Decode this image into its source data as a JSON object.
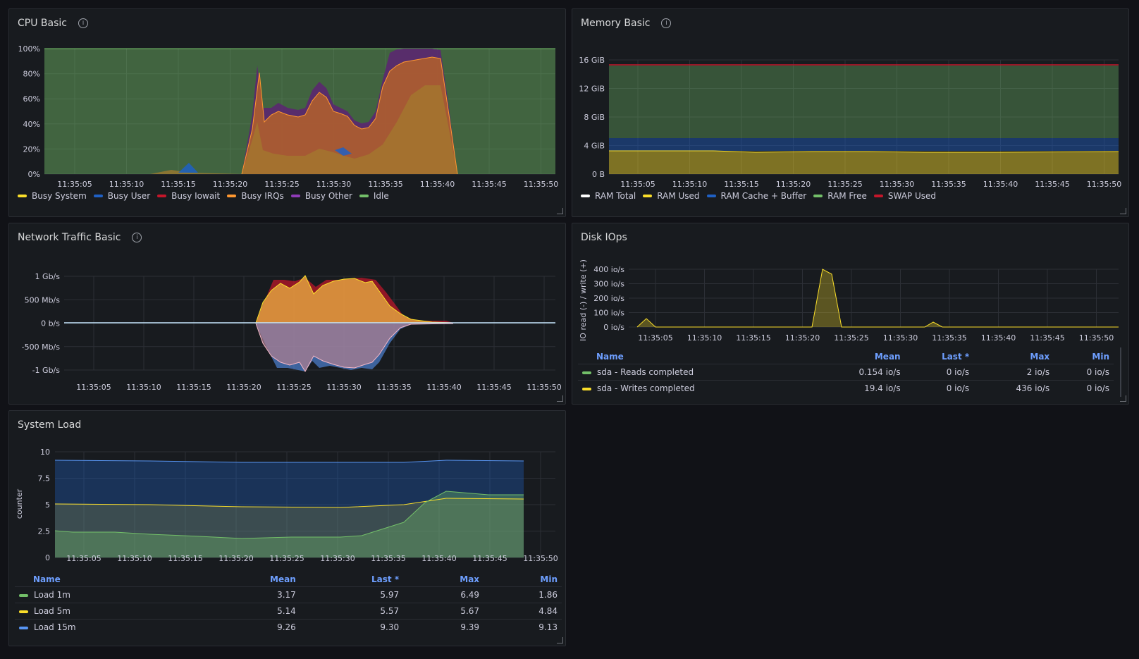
{
  "colors": {
    "green": "#73bf69",
    "yellow": "#fade2a",
    "blue": "#5794f2",
    "red": "#f2495c",
    "orange": "#ff9830",
    "purple": "#b877d9",
    "white": "#ffffff",
    "darkblue": "#1f60c4",
    "darkred": "#c4162a"
  },
  "cpu": {
    "title": "CPU Basic",
    "yticks": [
      "100%",
      "80%",
      "60%",
      "40%",
      "20%",
      "0%"
    ],
    "xticks": [
      "11:35:05",
      "11:35:10",
      "11:35:15",
      "11:35:20",
      "11:35:25",
      "11:35:30",
      "11:35:35",
      "11:35:40",
      "11:35:45",
      "11:35:50"
    ],
    "legend": [
      {
        "name": "Busy System",
        "color": "#fade2a"
      },
      {
        "name": "Busy User",
        "color": "#1f60c4"
      },
      {
        "name": "Busy Iowait",
        "color": "#c4162a"
      },
      {
        "name": "Busy IRQs",
        "color": "#ff9830"
      },
      {
        "name": "Busy Other",
        "color": "#8f3bb8"
      },
      {
        "name": "Idle",
        "color": "#73bf69"
      }
    ]
  },
  "memory": {
    "title": "Memory Basic",
    "yticks": [
      "16 GiB",
      "12 GiB",
      "8 GiB",
      "4 GiB",
      "0 B"
    ],
    "xticks": [
      "11:35:05",
      "11:35:10",
      "11:35:15",
      "11:35:20",
      "11:35:25",
      "11:35:30",
      "11:35:35",
      "11:35:40",
      "11:35:45",
      "11:35:50"
    ],
    "legend": [
      {
        "name": "RAM Total",
        "color": "#ffffff"
      },
      {
        "name": "RAM Used",
        "color": "#fade2a"
      },
      {
        "name": "RAM Cache + Buffer",
        "color": "#1f60c4"
      },
      {
        "name": "RAM Free",
        "color": "#73bf69"
      },
      {
        "name": "SWAP Used",
        "color": "#c4162a"
      }
    ]
  },
  "network": {
    "title": "Network Traffic Basic",
    "yticks": [
      "1 Gb/s",
      "500 Mb/s",
      "0 b/s",
      "-500 Mb/s",
      "-1 Gb/s"
    ],
    "xticks": [
      "11:35:05",
      "11:35:10",
      "11:35:15",
      "11:35:20",
      "11:35:25",
      "11:35:30",
      "11:35:35",
      "11:35:40",
      "11:35:45",
      "11:35:50"
    ]
  },
  "disk": {
    "title": "Disk IOps",
    "ylabel": "IO read (-) / write (+)",
    "yticks": [
      "400 io/s",
      "300 io/s",
      "200 io/s",
      "100 io/s",
      "0 io/s"
    ],
    "xticks": [
      "11:35:05",
      "11:35:10",
      "11:35:15",
      "11:35:20",
      "11:35:25",
      "11:35:30",
      "11:35:35",
      "11:35:40",
      "11:35:45",
      "11:35:50"
    ],
    "table": {
      "headers": [
        "Name",
        "Mean",
        "Last *",
        "Max",
        "Min"
      ],
      "rows": [
        {
          "name": "sda - Reads completed",
          "color": "#73bf69",
          "mean": "0.154 io/s",
          "last": "0 io/s",
          "max": "2 io/s",
          "min": "0 io/s"
        },
        {
          "name": "sda - Writes completed",
          "color": "#fade2a",
          "mean": "19.4 io/s",
          "last": "0 io/s",
          "max": "436 io/s",
          "min": "0 io/s"
        }
      ]
    }
  },
  "load": {
    "title": "System Load",
    "ylabel": "counter",
    "yticks": [
      "10",
      "7.5",
      "5",
      "2.5",
      "0"
    ],
    "xticks": [
      "11:35:05",
      "11:35:10",
      "11:35:15",
      "11:35:20",
      "11:35:25",
      "11:35:30",
      "11:35:35",
      "11:35:40",
      "11:35:45",
      "11:35:50"
    ],
    "table": {
      "headers": [
        "Name",
        "Mean",
        "Last *",
        "Max",
        "Min"
      ],
      "rows": [
        {
          "name": "Load 1m",
          "color": "#73bf69",
          "mean": "3.17",
          "last": "5.97",
          "max": "6.49",
          "min": "1.86"
        },
        {
          "name": "Load 5m",
          "color": "#fade2a",
          "mean": "5.14",
          "last": "5.57",
          "max": "5.67",
          "min": "4.84"
        },
        {
          "name": "Load 15m",
          "color": "#5794f2",
          "mean": "9.26",
          "last": "9.30",
          "max": "9.39",
          "min": "9.13"
        }
      ]
    }
  }
}
